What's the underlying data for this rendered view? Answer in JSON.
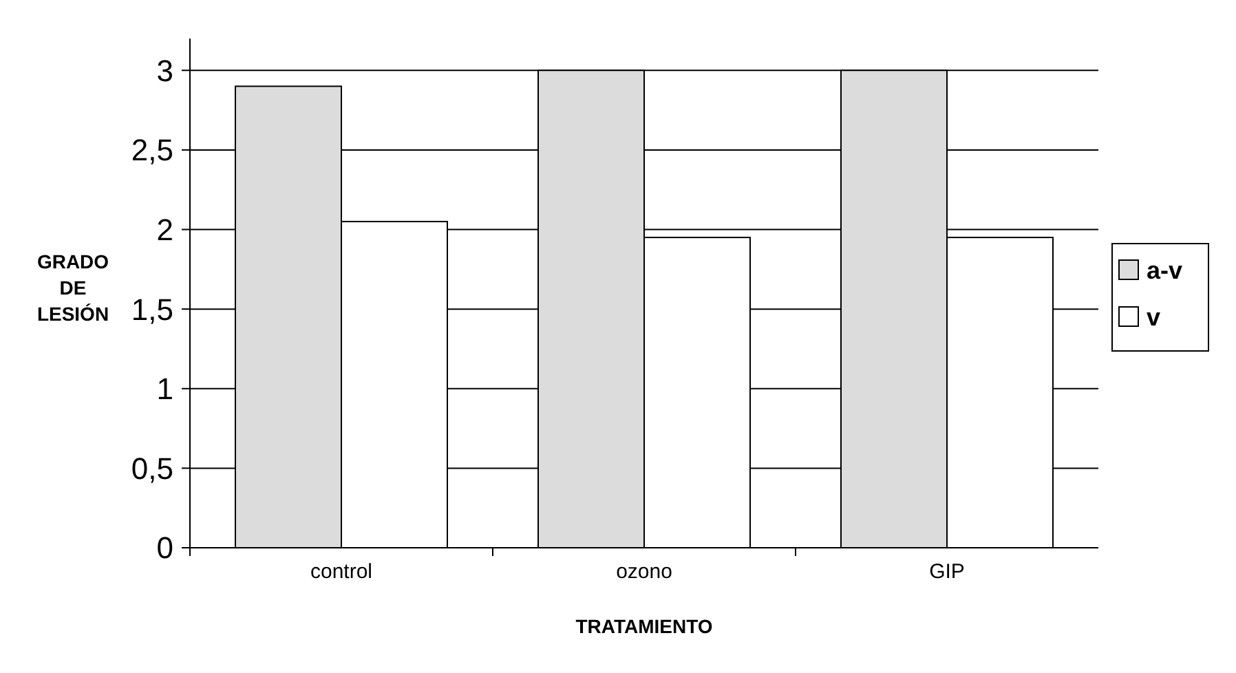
{
  "chart_data": {
    "type": "bar",
    "xlabel": "TRATAMIENTO",
    "ylabel": "GRADO DE LESIÓN",
    "categories": [
      "control",
      "ozono",
      "GIP"
    ],
    "series": [
      {
        "name": "a-v",
        "color": "#dcdcdc",
        "values": [
          2.9,
          3.0,
          3.0
        ]
      },
      {
        "name": "v",
        "color": "#ffffff",
        "values": [
          2.05,
          1.95,
          1.95
        ]
      }
    ],
    "ylim": [
      0,
      3.2
    ],
    "yticks": [
      0,
      {
        "value": 0.5,
        "label": "0,5"
      },
      1,
      {
        "value": 1.5,
        "label": "1,5"
      },
      2,
      {
        "value": 2.5,
        "label": "2,5"
      },
      3
    ],
    "grid": "y",
    "legend": "right"
  }
}
